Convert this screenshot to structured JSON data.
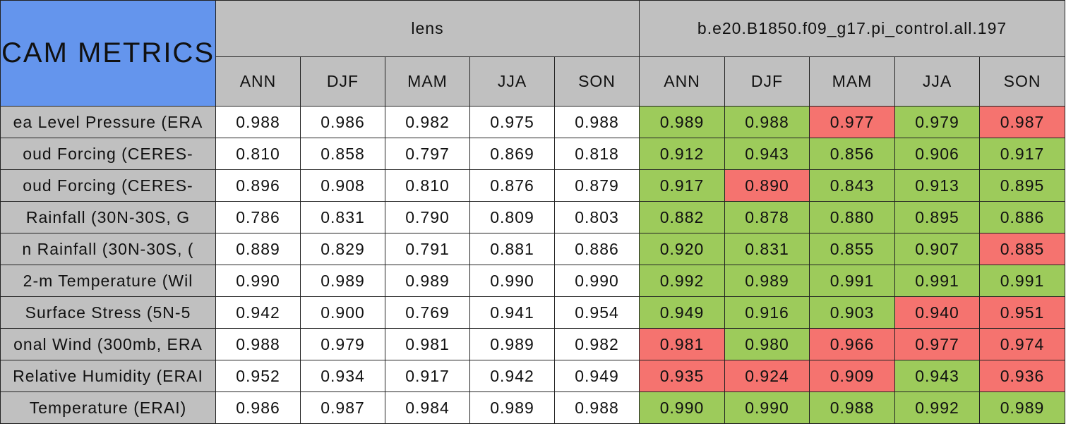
{
  "table": {
    "corner": "CAM METRICS",
    "groups": [
      "lens",
      "b.e20.B1850.f09_g17.pi_control.all.197"
    ],
    "seasons": [
      "ANN",
      "DJF",
      "MAM",
      "JJA",
      "SON"
    ],
    "good_color": "#9dcb5b",
    "bad_color": "#f5736f",
    "rows": [
      {
        "label": "ea Level Pressure (ERA",
        "lens": [
          "0.988",
          "0.986",
          "0.982",
          "0.975",
          "0.988"
        ],
        "control": [
          "0.989",
          "0.988",
          "0.977",
          "0.979",
          "0.987"
        ],
        "control_colors": [
          "good",
          "good",
          "bad",
          "good",
          "bad"
        ]
      },
      {
        "label": "oud Forcing (CERES-",
        "lens": [
          "0.810",
          "0.858",
          "0.797",
          "0.869",
          "0.818"
        ],
        "control": [
          "0.912",
          "0.943",
          "0.856",
          "0.906",
          "0.917"
        ],
        "control_colors": [
          "good",
          "good",
          "good",
          "good",
          "good"
        ]
      },
      {
        "label": "oud Forcing (CERES-",
        "lens": [
          "0.896",
          "0.908",
          "0.810",
          "0.876",
          "0.879"
        ],
        "control": [
          "0.917",
          "0.890",
          "0.843",
          "0.913",
          "0.895"
        ],
        "control_colors": [
          "good",
          "bad",
          "good",
          "good",
          "good"
        ]
      },
      {
        "label": "Rainfall (30N-30S, G",
        "lens": [
          "0.786",
          "0.831",
          "0.790",
          "0.809",
          "0.803"
        ],
        "control": [
          "0.882",
          "0.878",
          "0.880",
          "0.895",
          "0.886"
        ],
        "control_colors": [
          "good",
          "good",
          "good",
          "good",
          "good"
        ]
      },
      {
        "label": "n Rainfall (30N-30S, (",
        "lens": [
          "0.889",
          "0.829",
          "0.791",
          "0.881",
          "0.886"
        ],
        "control": [
          "0.920",
          "0.831",
          "0.855",
          "0.907",
          "0.885"
        ],
        "control_colors": [
          "good",
          "good",
          "good",
          "good",
          "bad"
        ]
      },
      {
        "label": "2-m Temperature (Wil",
        "lens": [
          "0.990",
          "0.989",
          "0.989",
          "0.990",
          "0.990"
        ],
        "control": [
          "0.992",
          "0.989",
          "0.991",
          "0.991",
          "0.991"
        ],
        "control_colors": [
          "good",
          "good",
          "good",
          "good",
          "good"
        ]
      },
      {
        "label": "Surface Stress (5N-5",
        "lens": [
          "0.942",
          "0.900",
          "0.769",
          "0.941",
          "0.954"
        ],
        "control": [
          "0.949",
          "0.916",
          "0.903",
          "0.940",
          "0.951"
        ],
        "control_colors": [
          "good",
          "good",
          "good",
          "bad",
          "bad"
        ]
      },
      {
        "label": "onal Wind (300mb, ERA",
        "lens": [
          "0.988",
          "0.979",
          "0.981",
          "0.989",
          "0.982"
        ],
        "control": [
          "0.981",
          "0.980",
          "0.966",
          "0.977",
          "0.974"
        ],
        "control_colors": [
          "bad",
          "good",
          "bad",
          "bad",
          "bad"
        ]
      },
      {
        "label": "Relative Humidity (ERAI",
        "lens": [
          "0.952",
          "0.934",
          "0.917",
          "0.942",
          "0.949"
        ],
        "control": [
          "0.935",
          "0.924",
          "0.909",
          "0.943",
          "0.936"
        ],
        "control_colors": [
          "bad",
          "bad",
          "bad",
          "good",
          "bad"
        ]
      },
      {
        "label": "Temperature (ERAI)",
        "lens": [
          "0.986",
          "0.987",
          "0.984",
          "0.989",
          "0.988"
        ],
        "control": [
          "0.990",
          "0.990",
          "0.988",
          "0.992",
          "0.989"
        ],
        "control_colors": [
          "good",
          "good",
          "good",
          "good",
          "good"
        ]
      }
    ]
  }
}
